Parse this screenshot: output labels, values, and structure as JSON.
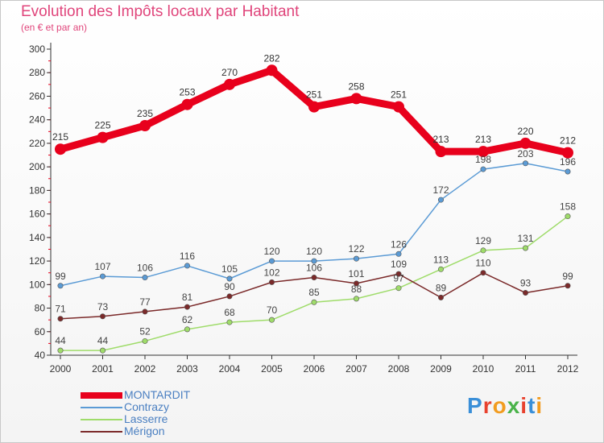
{
  "header": {
    "title": "Evolution des Impôts locaux par Habitant",
    "subtitle": "(en € et par an)"
  },
  "logo": {
    "text": "Proxiti",
    "colors": [
      "#3a8fd8",
      "#e8412e",
      "#f29c1f",
      "#4ab34a",
      "#e8412e",
      "#3a8fd8",
      "#f29c1f"
    ]
  },
  "chart_data": {
    "type": "line",
    "title": "Evolution des Impôts locaux par Habitant",
    "subtitle": "(en € et par an)",
    "x": [
      "2000",
      "2001",
      "2002",
      "2003",
      "2004",
      "2005",
      "2006",
      "2007",
      "2008",
      "2009",
      "2010",
      "2011",
      "2012"
    ],
    "ylim": [
      40,
      300
    ],
    "yticks": [
      40,
      60,
      80,
      100,
      120,
      140,
      160,
      180,
      200,
      220,
      240,
      260,
      280,
      300
    ],
    "grid": false,
    "legend": "bottom-left",
    "series": [
      {
        "name": "MONTARDIT",
        "color": "#e8001c",
        "values": [
          215,
          225,
          235,
          253,
          270,
          282,
          251,
          258,
          251,
          213,
          213,
          220,
          212
        ]
      },
      {
        "name": "Contrazy",
        "color": "#5b9bd5",
        "values": [
          99,
          107,
          106,
          116,
          105,
          120,
          120,
          122,
          126,
          172,
          198,
          203,
          196
        ]
      },
      {
        "name": "Lasserre",
        "color": "#9fdc6a",
        "values": [
          44,
          44,
          52,
          62,
          68,
          70,
          85,
          88,
          97,
          113,
          129,
          131,
          158
        ]
      },
      {
        "name": "Mérigon",
        "color": "#7b2a2a",
        "values": [
          71,
          73,
          77,
          81,
          90,
          102,
          106,
          101,
          109,
          89,
          110,
          93,
          99
        ]
      }
    ]
  }
}
